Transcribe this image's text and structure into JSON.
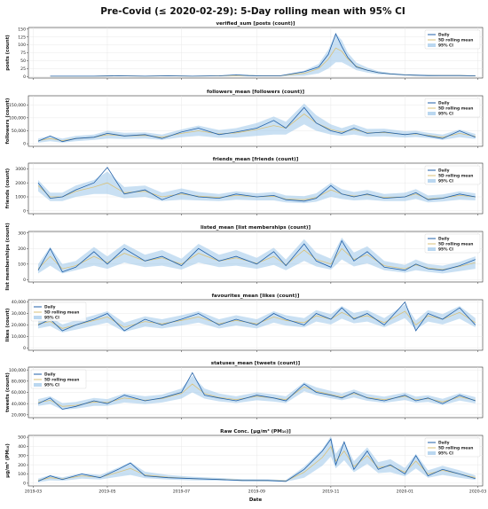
{
  "figure": {
    "title": "Pre-Covid (≤ 2020-02-29): 5-Day rolling mean with 95% CI",
    "xlabel": "Date"
  },
  "legend_labels": [
    "Daily",
    "5D rolling mean",
    "95% CI"
  ],
  "colors": {
    "daily": "#1f5fa8",
    "rolling": "#d9c27a",
    "ci": "#9dc6ea"
  },
  "chart_data": [
    {
      "type": "line",
      "title": "verified_sum [posts (count)]",
      "ylabel": "posts (count)",
      "ylim": [
        -5,
        155
      ],
      "yticks": [
        0,
        25,
        50,
        75,
        100,
        125,
        150
      ],
      "ytick_labels": [
        "0",
        "25",
        "50",
        "75",
        "100",
        "125",
        "150"
      ],
      "legend_position": "upper right",
      "x": [
        "2019-03-15",
        "2019-04-01",
        "2019-04-20",
        "2019-05-10",
        "2019-06-01",
        "2019-06-20",
        "2019-07-10",
        "2019-08-01",
        "2019-08-15",
        "2019-08-25",
        "2019-09-05",
        "2019-09-20",
        "2019-10-10",
        "2019-10-22",
        "2019-10-30",
        "2019-11-05",
        "2019-11-10",
        "2019-11-15",
        "2019-11-22",
        "2019-12-01",
        "2019-12-10",
        "2019-12-20",
        "2020-01-01",
        "2020-01-10",
        "2020-01-20",
        "2020-02-01",
        "2020-02-15",
        "2020-02-28"
      ],
      "series": [
        {
          "key": "daily",
          "values": [
            1,
            1,
            1,
            2,
            1,
            2,
            1,
            2,
            5,
            3,
            2,
            2,
            15,
            30,
            70,
            135,
            95,
            60,
            30,
            20,
            12,
            8,
            5,
            4,
            3,
            3,
            3,
            2
          ]
        },
        {
          "key": "rolling",
          "values": [
            1,
            1,
            1,
            2,
            1,
            2,
            1,
            2,
            3,
            3,
            2,
            2,
            10,
            25,
            55,
            90,
            80,
            55,
            32,
            20,
            12,
            8,
            5,
            4,
            3,
            3,
            3,
            2
          ]
        }
      ],
      "ci_half_width": [
        1,
        1,
        1,
        1,
        1,
        1,
        1,
        1,
        2,
        2,
        1,
        1,
        8,
        15,
        30,
        45,
        35,
        20,
        12,
        8,
        5,
        3,
        2,
        2,
        2,
        1,
        1,
        1
      ]
    },
    {
      "type": "line",
      "title": "followers_mean [followers (count)]",
      "ylabel": "followers (count)",
      "ylim": [
        -10000,
        185000
      ],
      "yticks": [
        0,
        50000,
        100000,
        150000
      ],
      "ytick_labels": [
        "0",
        "50,000",
        "100,000",
        "150,000"
      ],
      "legend_position": "upper right",
      "x": [
        "2019-03-05",
        "2019-03-15",
        "2019-03-25",
        "2019-04-05",
        "2019-04-20",
        "2019-05-01",
        "2019-05-15",
        "2019-06-01",
        "2019-06-15",
        "2019-07-01",
        "2019-07-15",
        "2019-08-01",
        "2019-08-15",
        "2019-09-01",
        "2019-09-15",
        "2019-09-25",
        "2019-10-10",
        "2019-10-20",
        "2019-11-01",
        "2019-11-10",
        "2019-11-20",
        "2019-12-01",
        "2019-12-15",
        "2020-01-01",
        "2020-01-10",
        "2020-01-20",
        "2020-02-01",
        "2020-02-15",
        "2020-02-28"
      ],
      "series": [
        {
          "key": "daily",
          "values": [
            10000,
            30000,
            8000,
            20000,
            25000,
            40000,
            30000,
            35000,
            20000,
            45000,
            60000,
            35000,
            45000,
            60000,
            90000,
            60000,
            140000,
            80000,
            50000,
            40000,
            60000,
            40000,
            45000,
            35000,
            40000,
            30000,
            20000,
            50000,
            25000
          ]
        },
        {
          "key": "rolling",
          "values": [
            12000,
            20000,
            12000,
            20000,
            25000,
            35000,
            30000,
            32000,
            25000,
            40000,
            50000,
            38000,
            42000,
            55000,
            70000,
            60000,
            115000,
            80000,
            55000,
            45000,
            55000,
            42000,
            43000,
            36000,
            38000,
            32000,
            25000,
            40000,
            28000
          ]
        }
      ],
      "ci_half_width": [
        8000,
        10000,
        8000,
        10000,
        10000,
        15000,
        12000,
        12000,
        10000,
        15000,
        20000,
        15000,
        18000,
        25000,
        35000,
        25000,
        40000,
        30000,
        20000,
        15000,
        20000,
        15000,
        15000,
        12000,
        12000,
        10000,
        10000,
        15000,
        10000
      ]
    },
    {
      "type": "line",
      "title": "friends_mean [friends (count)]",
      "ylabel": "friends (count)",
      "ylim": [
        -200,
        3400
      ],
      "yticks": [
        0,
        1000,
        2000,
        3000
      ],
      "ytick_labels": [
        "0",
        "1000",
        "2000",
        "3000"
      ],
      "legend_position": "upper right",
      "x": [
        "2019-03-05",
        "2019-03-15",
        "2019-03-25",
        "2019-04-05",
        "2019-04-20",
        "2019-05-01",
        "2019-05-15",
        "2019-06-01",
        "2019-06-15",
        "2019-07-01",
        "2019-07-15",
        "2019-08-01",
        "2019-08-15",
        "2019-09-01",
        "2019-09-15",
        "2019-09-25",
        "2019-10-10",
        "2019-10-20",
        "2019-11-01",
        "2019-11-10",
        "2019-11-20",
        "2019-12-01",
        "2019-12-15",
        "2020-01-01",
        "2020-01-10",
        "2020-01-20",
        "2020-02-01",
        "2020-02-15",
        "2020-02-28"
      ],
      "series": [
        {
          "key": "daily",
          "values": [
            2000,
            900,
            1000,
            1500,
            2000,
            3100,
            1200,
            1500,
            800,
            1300,
            1000,
            900,
            1200,
            1000,
            1100,
            800,
            700,
            900,
            1800,
            1200,
            1000,
            1200,
            900,
            1000,
            1300,
            800,
            900,
            1200,
            1000
          ]
        },
        {
          "key": "rolling",
          "values": [
            1800,
            1000,
            1000,
            1400,
            1700,
            2000,
            1300,
            1400,
            1000,
            1200,
            1050,
            950,
            1100,
            1000,
            1050,
            850,
            800,
            950,
            1500,
            1200,
            1050,
            1150,
            950,
            1000,
            1200,
            850,
            920,
            1100,
            1000
          ]
        }
      ],
      "ci_half_width": [
        400,
        300,
        300,
        400,
        500,
        800,
        400,
        400,
        300,
        400,
        300,
        250,
        300,
        250,
        300,
        250,
        250,
        300,
        500,
        350,
        300,
        350,
        250,
        300,
        350,
        250,
        250,
        300,
        250
      ]
    },
    {
      "type": "line",
      "title": "listed_mean [list memberships (count)]",
      "ylabel": "list memberships (count)",
      "ylim": [
        -15,
        310
      ],
      "yticks": [
        0,
        100,
        200,
        300
      ],
      "ytick_labels": [
        "0",
        "100",
        "200",
        "300"
      ],
      "legend_position": "upper right",
      "x": [
        "2019-03-05",
        "2019-03-15",
        "2019-03-25",
        "2019-04-05",
        "2019-04-20",
        "2019-05-01",
        "2019-05-15",
        "2019-06-01",
        "2019-06-15",
        "2019-07-01",
        "2019-07-15",
        "2019-08-01",
        "2019-08-15",
        "2019-09-01",
        "2019-09-15",
        "2019-09-25",
        "2019-10-10",
        "2019-10-20",
        "2019-11-01",
        "2019-11-10",
        "2019-11-20",
        "2019-12-01",
        "2019-12-15",
        "2020-01-01",
        "2020-01-10",
        "2020-01-20",
        "2020-02-01",
        "2020-02-15",
        "2020-02-28"
      ],
      "series": [
        {
          "key": "daily",
          "values": [
            60,
            200,
            50,
            80,
            180,
            100,
            200,
            120,
            150,
            90,
            200,
            120,
            150,
            100,
            180,
            90,
            230,
            120,
            80,
            250,
            120,
            180,
            80,
            60,
            100,
            70,
            60,
            90,
            130
          ]
        },
        {
          "key": "rolling",
          "values": [
            70,
            150,
            70,
            90,
            150,
            110,
            170,
            120,
            140,
            100,
            170,
            120,
            140,
            105,
            150,
            95,
            190,
            130,
            100,
            200,
            130,
            160,
            90,
            70,
            95,
            75,
            65,
            85,
            110
          ]
        }
      ],
      "ci_half_width": [
        30,
        60,
        30,
        30,
        60,
        40,
        60,
        40,
        50,
        35,
        60,
        40,
        50,
        35,
        55,
        35,
        70,
        45,
        35,
        70,
        45,
        55,
        30,
        25,
        35,
        25,
        25,
        30,
        40
      ]
    },
    {
      "type": "line",
      "title": "favourites_mean [likes (count)]",
      "ylabel": "likes (count)",
      "ylim": [
        -2000,
        42000
      ],
      "yticks": [
        0,
        10000,
        20000,
        30000,
        40000
      ],
      "ytick_labels": [
        "0",
        "10,000",
        "20,000",
        "30,000",
        "40,000"
      ],
      "legend_position": "upper left",
      "x": [
        "2019-03-05",
        "2019-03-15",
        "2019-03-25",
        "2019-04-05",
        "2019-04-20",
        "2019-05-01",
        "2019-05-15",
        "2019-06-01",
        "2019-06-15",
        "2019-07-01",
        "2019-07-15",
        "2019-08-01",
        "2019-08-15",
        "2019-09-01",
        "2019-09-15",
        "2019-09-25",
        "2019-10-10",
        "2019-10-20",
        "2019-11-01",
        "2019-11-10",
        "2019-11-20",
        "2019-12-01",
        "2019-12-15",
        "2020-01-01",
        "2020-01-10",
        "2020-01-20",
        "2020-02-01",
        "2020-02-15",
        "2020-02-28"
      ],
      "series": [
        {
          "key": "daily",
          "values": [
            20000,
            25000,
            15000,
            20000,
            25000,
            30000,
            15000,
            25000,
            20000,
            25000,
            30000,
            20000,
            25000,
            20000,
            30000,
            25000,
            20000,
            30000,
            25000,
            35000,
            25000,
            30000,
            20000,
            40000,
            15000,
            30000,
            25000,
            35000,
            20000
          ]
        },
        {
          "key": "rolling",
          "values": [
            21000,
            23000,
            17000,
            20000,
            24000,
            27000,
            18000,
            23000,
            21000,
            24000,
            27000,
            21000,
            24000,
            21000,
            27000,
            24000,
            22000,
            28000,
            25000,
            31000,
            26000,
            28000,
            22000,
            32000,
            20000,
            28000,
            25000,
            31000,
            22000
          ]
        }
      ],
      "ci_half_width": [
        4000,
        4000,
        3500,
        4000,
        4500,
        5000,
        4000,
        4500,
        4000,
        4500,
        5000,
        4000,
        4500,
        4000,
        5000,
        4500,
        4000,
        5000,
        4500,
        5500,
        4500,
        5000,
        4000,
        6000,
        4000,
        5000,
        4500,
        5500,
        4000
      ]
    },
    {
      "type": "line",
      "title": "statuses_mean [tweets (count)]",
      "ylabel": "tweets (count)",
      "ylim": [
        15000,
        105000
      ],
      "yticks": [
        20000,
        40000,
        60000,
        80000,
        100000
      ],
      "ytick_labels": [
        "20,000",
        "40,000",
        "60,000",
        "80,000",
        "100,000"
      ],
      "legend_position": "upper left",
      "x": [
        "2019-03-05",
        "2019-03-15",
        "2019-03-25",
        "2019-04-05",
        "2019-04-20",
        "2019-05-01",
        "2019-05-15",
        "2019-06-01",
        "2019-06-15",
        "2019-07-01",
        "2019-07-10",
        "2019-07-20",
        "2019-08-01",
        "2019-08-15",
        "2019-09-01",
        "2019-09-15",
        "2019-09-25",
        "2019-10-10",
        "2019-10-20",
        "2019-11-01",
        "2019-11-10",
        "2019-11-20",
        "2019-12-01",
        "2019-12-15",
        "2020-01-01",
        "2020-01-10",
        "2020-01-20",
        "2020-02-01",
        "2020-02-15",
        "2020-02-28"
      ],
      "series": [
        {
          "key": "daily",
          "values": [
            40000,
            50000,
            30000,
            35000,
            45000,
            40000,
            55000,
            45000,
            50000,
            60000,
            95000,
            55000,
            50000,
            45000,
            55000,
            50000,
            45000,
            75000,
            60000,
            55000,
            50000,
            60000,
            50000,
            45000,
            55000,
            45000,
            50000,
            40000,
            55000,
            45000
          ]
        },
        {
          "key": "rolling",
          "values": [
            42000,
            46000,
            35000,
            37000,
            43000,
            42000,
            50000,
            46000,
            49000,
            58000,
            75000,
            58000,
            51000,
            47000,
            53000,
            50000,
            47000,
            70000,
            62000,
            56000,
            52000,
            58000,
            51000,
            47000,
            53000,
            47000,
            49000,
            43000,
            52000,
            46000
          ]
        }
      ],
      "ci_half_width": [
        6000,
        7000,
        6000,
        6000,
        7000,
        6000,
        8000,
        7000,
        7000,
        9000,
        15000,
        9000,
        7000,
        6000,
        7000,
        6500,
        6000,
        8000,
        7000,
        6500,
        6000,
        7000,
        6000,
        5500,
        6500,
        5500,
        6000,
        5500,
        6500,
        5500
      ]
    },
    {
      "type": "line",
      "title": "Raw Conc. [µg/m³ (PM₁₀)]",
      "ylabel": "µg/m³ (PM₁₀)",
      "ylim": [
        -30,
        520
      ],
      "yticks": [
        0,
        100,
        200,
        300,
        400,
        500
      ],
      "ytick_labels": [
        "0",
        "100",
        "200",
        "300",
        "400",
        "500"
      ],
      "legend_position": "upper right",
      "x": [
        "2019-03-05",
        "2019-03-15",
        "2019-03-25",
        "2019-04-10",
        "2019-04-25",
        "2019-05-10",
        "2019-05-20",
        "2019-06-01",
        "2019-06-20",
        "2019-07-10",
        "2019-08-01",
        "2019-08-20",
        "2019-09-10",
        "2019-09-25",
        "2019-10-10",
        "2019-10-25",
        "2019-11-01",
        "2019-11-05",
        "2019-11-12",
        "2019-11-20",
        "2019-12-01",
        "2019-12-10",
        "2019-12-20",
        "2020-01-01",
        "2020-01-10",
        "2020-01-20",
        "2020-02-01",
        "2020-02-15",
        "2020-02-28"
      ],
      "series": [
        {
          "key": "daily",
          "values": [
            20,
            80,
            40,
            100,
            60,
            150,
            220,
            80,
            60,
            50,
            40,
            30,
            30,
            20,
            150,
            350,
            480,
            200,
            450,
            150,
            350,
            150,
            200,
            100,
            300,
            80,
            150,
            100,
            50
          ]
        },
        {
          "key": "rolling",
          "values": [
            30,
            60,
            45,
            80,
            65,
            120,
            160,
            90,
            65,
            50,
            42,
            33,
            30,
            25,
            120,
            280,
            400,
            240,
            350,
            180,
            300,
            170,
            190,
            120,
            240,
            100,
            140,
            100,
            60
          ]
        }
      ],
      "ci_half_width": [
        20,
        30,
        20,
        30,
        25,
        50,
        70,
        35,
        25,
        20,
        15,
        12,
        12,
        10,
        60,
        90,
        110,
        80,
        100,
        60,
        90,
        60,
        70,
        45,
        80,
        40,
        50,
        40,
        25
      ]
    }
  ],
  "x_axis": {
    "min": "2019-02-25",
    "max": "2020-03-05",
    "ticks": [
      "2019-03-01",
      "2019-05-01",
      "2019-07-01",
      "2019-09-01",
      "2019-11-01",
      "2020-01-01",
      "2020-03-01"
    ],
    "tick_labels": [
      "2019-03",
      "2019-05",
      "2019-07",
      "2019-09",
      "2019-11",
      "2020-01",
      "2020-03"
    ]
  }
}
